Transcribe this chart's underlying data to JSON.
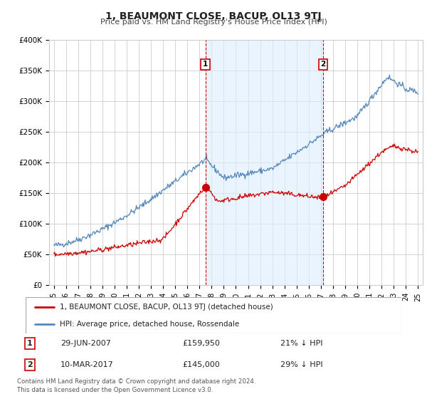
{
  "title": "1, BEAUMONT CLOSE, BACUP, OL13 9TJ",
  "subtitle": "Price paid vs. HM Land Registry's House Price Index (HPI)",
  "ylim": [
    0,
    400000
  ],
  "yticks": [
    0,
    50000,
    100000,
    150000,
    200000,
    250000,
    300000,
    350000,
    400000
  ],
  "ytick_labels": [
    "£0",
    "£50K",
    "£100K",
    "£150K",
    "£200K",
    "£250K",
    "£300K",
    "£350K",
    "£400K"
  ],
  "x_start_year": 1995,
  "x_end_year": 2025,
  "sale1_date": 2007.49,
  "sale1_price": 159950,
  "sale1_label": "1",
  "sale1_display": "29-JUN-2007",
  "sale1_price_display": "£159,950",
  "sale1_pct": "21% ↓ HPI",
  "sale2_date": 2017.19,
  "sale2_price": 145000,
  "sale2_label": "2",
  "sale2_display": "10-MAR-2017",
  "sale2_price_display": "£145,000",
  "sale2_pct": "29% ↓ HPI",
  "red_color": "#cc0000",
  "blue_color": "#5588bb",
  "shade_color": "#ddeeff",
  "legend_label_red": "1, BEAUMONT CLOSE, BACUP, OL13 9TJ (detached house)",
  "legend_label_blue": "HPI: Average price, detached house, Rossendale",
  "footer": "Contains HM Land Registry data © Crown copyright and database right 2024.\nThis data is licensed under the Open Government Licence v3.0.",
  "background_color": "#ffffff",
  "grid_color": "#cccccc"
}
